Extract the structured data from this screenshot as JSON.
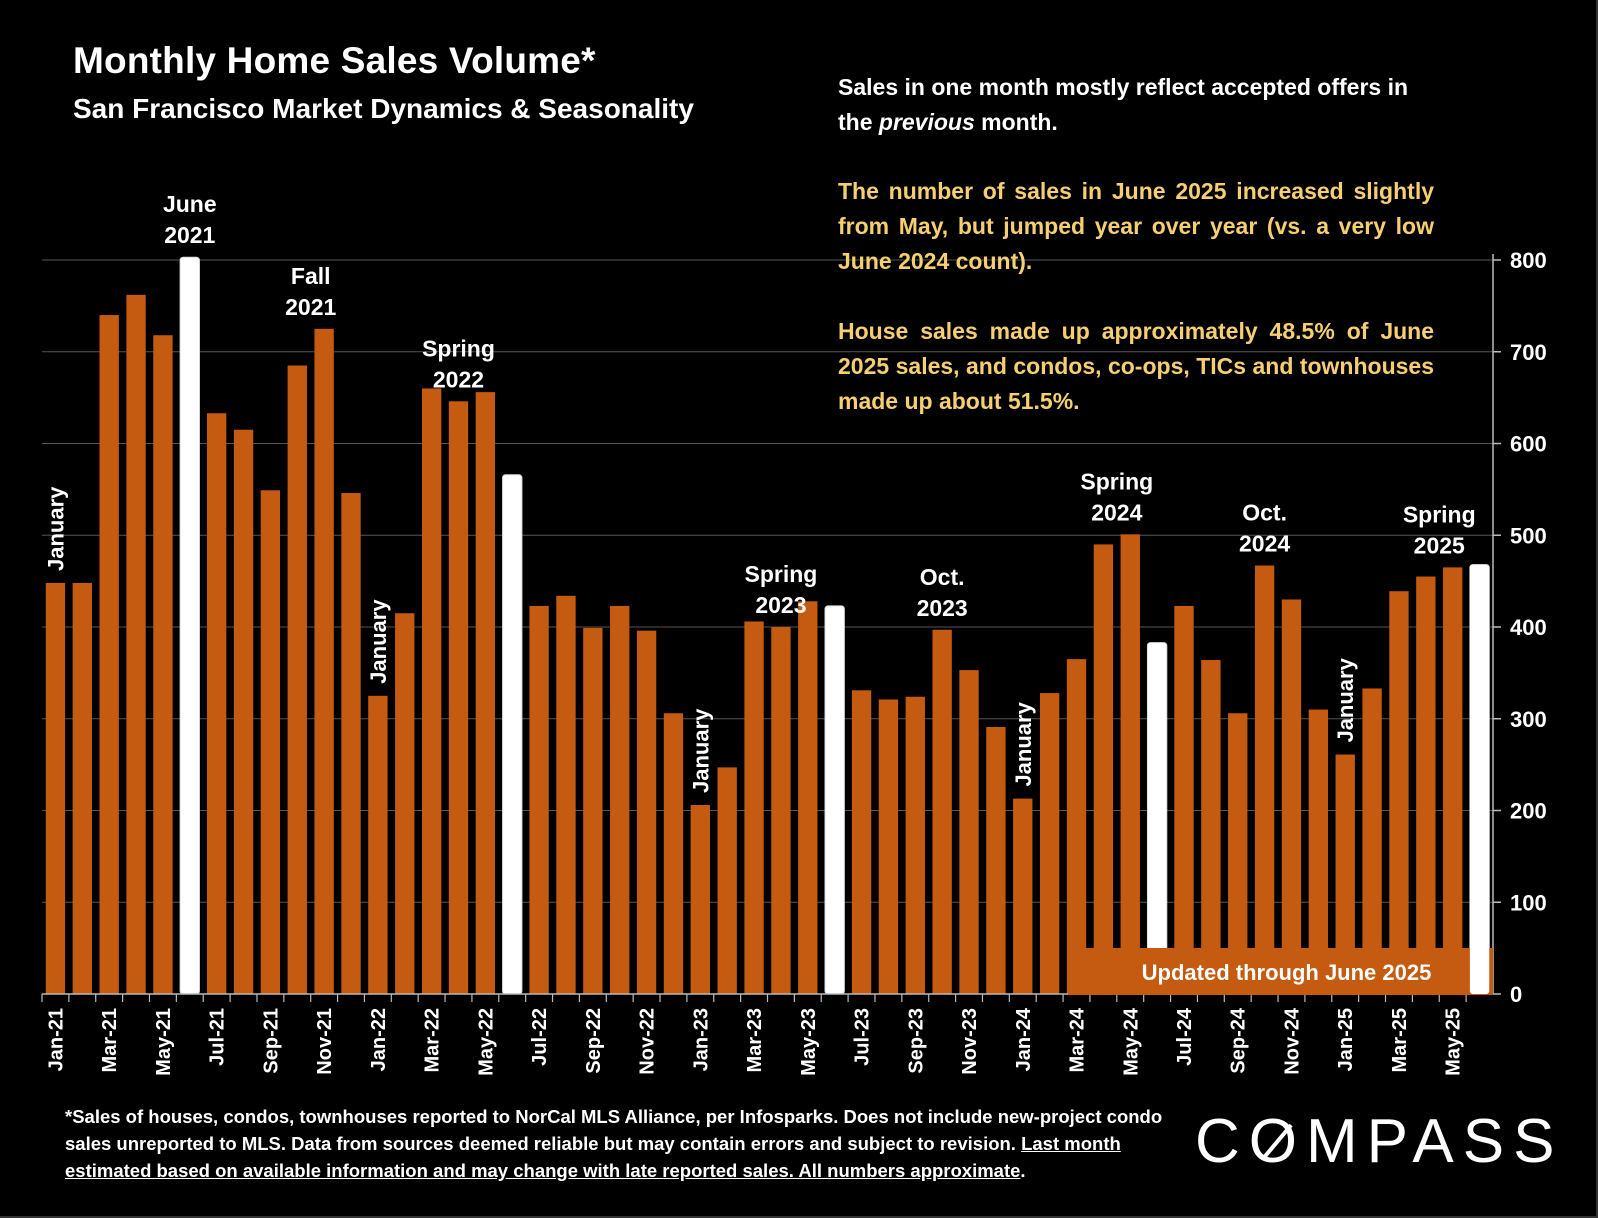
{
  "brand": {
    "pre": "C",
    "o": "O",
    "post": "MPASS"
  },
  "notes": {
    "intro_pre": "Sales in one month mostly reflect accepted offers in the ",
    "intro_italic": "previous",
    "intro_post": " month.",
    "june": "The number of sales in June 2025 increased slightly from May, but jumped year over year (vs. a very low June 2024 count).",
    "share": "House sales made up approximately 48.5% of June 2025 sales, and condos, co-ops, TICs and townhouses made up about 51.5%."
  },
  "footnote": {
    "text": "*Sales of houses, condos, townhouses reported to NorCal MLS Alliance, per Infosparks. Does not include new-project condo sales unreported to MLS. Data from sources deemed reliable but may contain errors and subject to revision. ",
    "underlined": "Last month estimated based on available information and may change with late reported sales. All numbers approximate",
    "end": "."
  },
  "chart_data": {
    "type": "bar",
    "title": "Monthly Home Sales Volume*",
    "subtitle": "San Francisco Market Dynamics & Seasonality",
    "xlabel": "",
    "ylabel": "",
    "ylim": [
      0,
      800
    ],
    "yticks": [
      0,
      100,
      200,
      300,
      400,
      500,
      600,
      700,
      800
    ],
    "grid": true,
    "colors": {
      "bar": "#c55a11",
      "highlight": "#ffffff",
      "gold_text": "#f6cf72",
      "grid": "#555555",
      "banner": "#c55a11"
    },
    "categories": [
      "Jan-21",
      "Feb-21",
      "Mar-21",
      "Apr-21",
      "May-21",
      "Jun-21",
      "Jul-21",
      "Aug-21",
      "Sep-21",
      "Oct-21",
      "Nov-21",
      "Dec-21",
      "Jan-22",
      "Feb-22",
      "Mar-22",
      "Apr-22",
      "May-22",
      "Jun-22",
      "Jul-22",
      "Aug-22",
      "Sep-22",
      "Oct-22",
      "Nov-22",
      "Dec-22",
      "Jan-23",
      "Feb-23",
      "Mar-23",
      "Apr-23",
      "May-23",
      "Jun-23",
      "Jul-23",
      "Aug-23",
      "Sep-23",
      "Oct-23",
      "Nov-23",
      "Dec-23",
      "Jan-24",
      "Feb-24",
      "Mar-24",
      "Apr-24",
      "May-24",
      "Jun-24",
      "Jul-24",
      "Aug-24",
      "Sep-24",
      "Oct-24",
      "Nov-24",
      "Dec-24",
      "Jan-25",
      "Feb-25",
      "Mar-25",
      "Apr-25",
      "May-25",
      "Jun-25"
    ],
    "values": [
      448,
      448,
      740,
      762,
      718,
      803,
      633,
      615,
      549,
      685,
      725,
      546,
      325,
      415,
      660,
      646,
      656,
      566,
      423,
      434,
      399,
      423,
      396,
      306,
      206,
      247,
      406,
      400,
      428,
      423,
      331,
      321,
      324,
      397,
      353,
      291,
      213,
      328,
      365,
      490,
      501,
      383,
      423,
      364,
      306,
      467,
      430,
      310,
      261,
      333,
      439,
      455,
      465,
      468
    ],
    "highlight_indices": [
      5,
      17,
      29,
      41,
      53
    ],
    "xtick_labels": [
      "Jan-21",
      "Mar-21",
      "May-21",
      "Jul-21",
      "Sep-21",
      "Nov-21",
      "Jan-22",
      "Mar-22",
      "May-22",
      "Jul-22",
      "Sep-22",
      "Nov-22",
      "Jan-23",
      "Mar-23",
      "May-23",
      "Jul-23",
      "Sep-23",
      "Nov-23",
      "Jan-24",
      "Mar-24",
      "May-24",
      "Jul-24",
      "Sep-24",
      "Nov-24",
      "Jan-25",
      "Mar-25",
      "May-25"
    ],
    "annotations": [
      {
        "lines": [
          "June",
          "2021"
        ],
        "index": 5
      },
      {
        "lines": [
          "Fall",
          "2021"
        ],
        "index": 9.5
      },
      {
        "lines": [
          "Spring",
          "2022"
        ],
        "index": 15
      },
      {
        "lines": [
          "Spring",
          "2023"
        ],
        "index": 27
      },
      {
        "lines": [
          "Oct.",
          "2023"
        ],
        "index": 33
      },
      {
        "lines": [
          "Spring",
          "2024"
        ],
        "index": 39.5
      },
      {
        "lines": [
          "Oct.",
          "2024"
        ],
        "index": 45
      },
      {
        "lines": [
          "Spring",
          "2025"
        ],
        "index": 51.5
      }
    ],
    "january_labels": [
      {
        "text": "January",
        "index": 0
      },
      {
        "text": "January",
        "index": 12
      },
      {
        "text": "January",
        "index": 24
      },
      {
        "text": "January",
        "index": 36
      },
      {
        "text": "January",
        "index": 48
      }
    ],
    "banner": "Updated through June 2025"
  }
}
